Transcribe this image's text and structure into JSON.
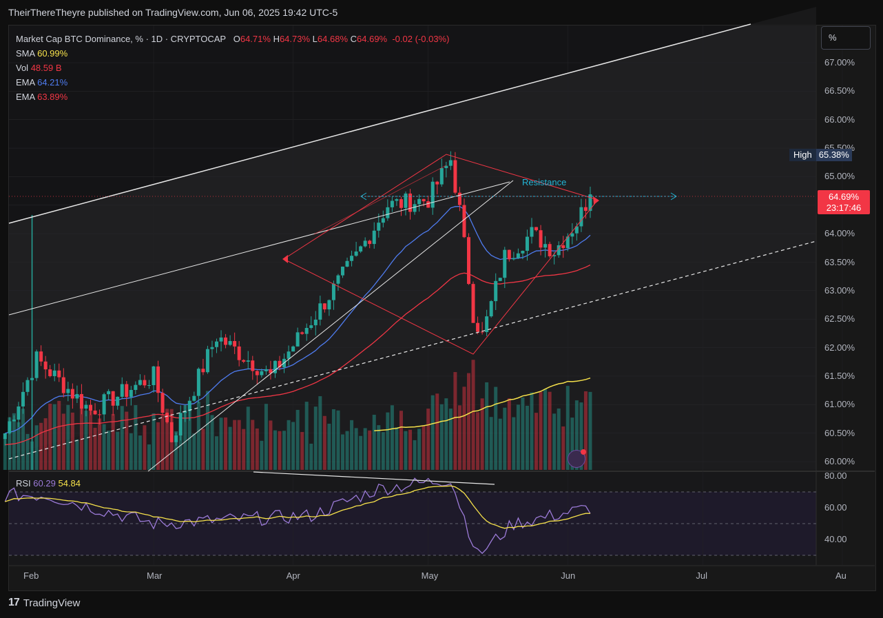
{
  "header": {
    "publisher": "TheirThereTheyre published on TradingView.com, Jun 06, 2025 19:42 UTC-5"
  },
  "legend": {
    "symbol": "Market Cap BTC Dominance, % · 1D · CRYPTOCAP",
    "open_label": "O",
    "open": "64.71%",
    "high_label": "H",
    "high": "64.73%",
    "low_label": "L",
    "low": "64.68%",
    "close_label": "C",
    "close": "64.69%",
    "change": "-0.02 (-0.03%)",
    "sma_label": "SMA",
    "sma": "60.99%",
    "vol_label": "Vol",
    "vol": "48.59 B",
    "ema1_label": "EMA",
    "ema1": "64.21%",
    "ema2_label": "EMA",
    "ema2": "63.89%"
  },
  "price_axis": {
    "unit": "%",
    "ticks": [
      "67.00%",
      "66.50%",
      "66.00%",
      "65.50%",
      "65.00%",
      "64.50%",
      "64.00%",
      "63.50%",
      "63.00%",
      "62.50%",
      "62.00%",
      "61.50%",
      "61.00%",
      "60.50%",
      "60.00%"
    ],
    "high_label": "High",
    "high_value": "65.38%",
    "last_price": "64.69%",
    "countdown": "23:17:46"
  },
  "rsi": {
    "label": "RSI",
    "value1": "60.29",
    "value2": "54.84",
    "ticks": [
      "80.00",
      "60.00",
      "40.00"
    ]
  },
  "time_axis": {
    "ticks": [
      "Feb",
      "Mar",
      "Apr",
      "May",
      "Jun",
      "Jul",
      "Au"
    ]
  },
  "annotations": {
    "resistance": "Resistance"
  },
  "footer": {
    "brand": "TradingView",
    "mark": "17"
  },
  "chart_data": {
    "type": "candlestick",
    "title": "Market Cap BTC Dominance, % · 1D · CRYPTOCAP",
    "ylim": [
      59.9,
      67.4
    ],
    "x_range": [
      "2025-01-27",
      "2025-08-01"
    ],
    "resistance_level": 64.69,
    "recent_high": 65.38,
    "ohlc_keypoints": [
      {
        "date": "2025-01-27",
        "close": 60.5
      },
      {
        "date": "2025-02-03",
        "close": 61.8
      },
      {
        "date": "2025-02-15",
        "close": 60.9
      },
      {
        "date": "2025-03-01",
        "close": 61.5
      },
      {
        "date": "2025-03-05",
        "close": 60.4
      },
      {
        "date": "2025-03-15",
        "close": 62.2
      },
      {
        "date": "2025-03-27",
        "close": 61.5
      },
      {
        "date": "2025-04-08",
        "close": 62.8
      },
      {
        "date": "2025-04-15",
        "close": 63.6
      },
      {
        "date": "2025-04-22",
        "close": 64.5
      },
      {
        "date": "2025-05-01",
        "close": 64.6
      },
      {
        "date": "2025-05-06",
        "close": 65.3
      },
      {
        "date": "2025-05-08",
        "close": 64.4
      },
      {
        "date": "2025-05-11",
        "close": 62.6
      },
      {
        "date": "2025-05-13",
        "close": 62.2
      },
      {
        "date": "2025-05-18",
        "close": 63.6
      },
      {
        "date": "2025-05-24",
        "close": 64.0
      },
      {
        "date": "2025-05-29",
        "close": 63.7
      },
      {
        "date": "2025-06-03",
        "close": 64.2
      },
      {
        "date": "2025-06-06",
        "close": 64.69
      }
    ],
    "rsi_keypoints": [
      {
        "date": "2025-02-05",
        "value": 68
      },
      {
        "date": "2025-03-01",
        "value": 50
      },
      {
        "date": "2025-04-05",
        "value": 55
      },
      {
        "date": "2025-04-20",
        "value": 72
      },
      {
        "date": "2025-05-06",
        "value": 78
      },
      {
        "date": "2025-05-12",
        "value": 30
      },
      {
        "date": "2025-05-20",
        "value": 50
      },
      {
        "date": "2025-06-06",
        "value": 60
      }
    ],
    "rsi_ylim": [
      30,
      82
    ]
  }
}
